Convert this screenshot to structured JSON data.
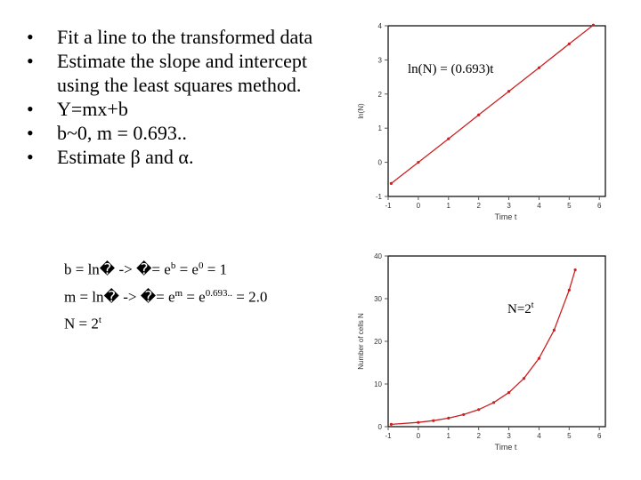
{
  "bullets": [
    "Fit a line to the transformed data",
    "Estimate the slope and intercept using the least squares method.",
    "Y=mx+b",
    "b~0, m = 0.693..",
    "Estimate β and α."
  ],
  "bullet_glyph": "•",
  "formulas": {
    "line1": {
      "a": "b = ln�  ->  �= e",
      "sup1": "b",
      "b": " = e",
      "sup2": "0",
      "c": " = 1"
    },
    "line2": {
      "a": "m = ln�  ->  �= e",
      "sup1": "m",
      "b": " = e",
      "sup2": "0.693..",
      "c": " = 2.0"
    },
    "line3": {
      "a": "N = 2",
      "sup1": "t"
    }
  },
  "colors": {
    "line": "#cc2020",
    "axis": "#555555",
    "frame": "#000000"
  },
  "chart_data": [
    {
      "type": "line",
      "title": "",
      "xlabel": "Time t",
      "ylabel": "ln(N)",
      "annotation": "ln(N) = (0.693)t",
      "xlim": [
        -1,
        6.2
      ],
      "ylim": [
        -1,
        4
      ],
      "xticks": [
        "-1",
        "0",
        "1",
        "2",
        "3",
        "4",
        "5",
        "6"
      ],
      "yticks": [
        "-1",
        "0",
        "1",
        "2",
        "3",
        "4"
      ],
      "x": [
        -0.9,
        0,
        1,
        2,
        3,
        4,
        5,
        5.8
      ],
      "y": [
        -0.62,
        0,
        0.69,
        1.39,
        2.08,
        2.77,
        3.47,
        4.02
      ]
    },
    {
      "type": "line",
      "title": "",
      "xlabel": "Time t",
      "ylabel": "Number of cells N",
      "annotation": "N=2t",
      "annotation_base": "N=2",
      "annotation_sup": "t",
      "xlim": [
        -1,
        6.2
      ],
      "ylim": [
        0,
        40
      ],
      "xticks": [
        "-1",
        "0",
        "1",
        "2",
        "3",
        "4",
        "5",
        "6"
      ],
      "yticks": [
        "0",
        "10",
        "20",
        "30",
        "40"
      ],
      "x": [
        -0.9,
        0,
        0.5,
        1,
        1.5,
        2,
        2.5,
        3,
        3.5,
        4,
        4.5,
        5,
        5.2
      ],
      "y": [
        0.54,
        1,
        1.41,
        2,
        2.83,
        4,
        5.66,
        8,
        11.31,
        16,
        22.63,
        32,
        36.76
      ]
    }
  ]
}
